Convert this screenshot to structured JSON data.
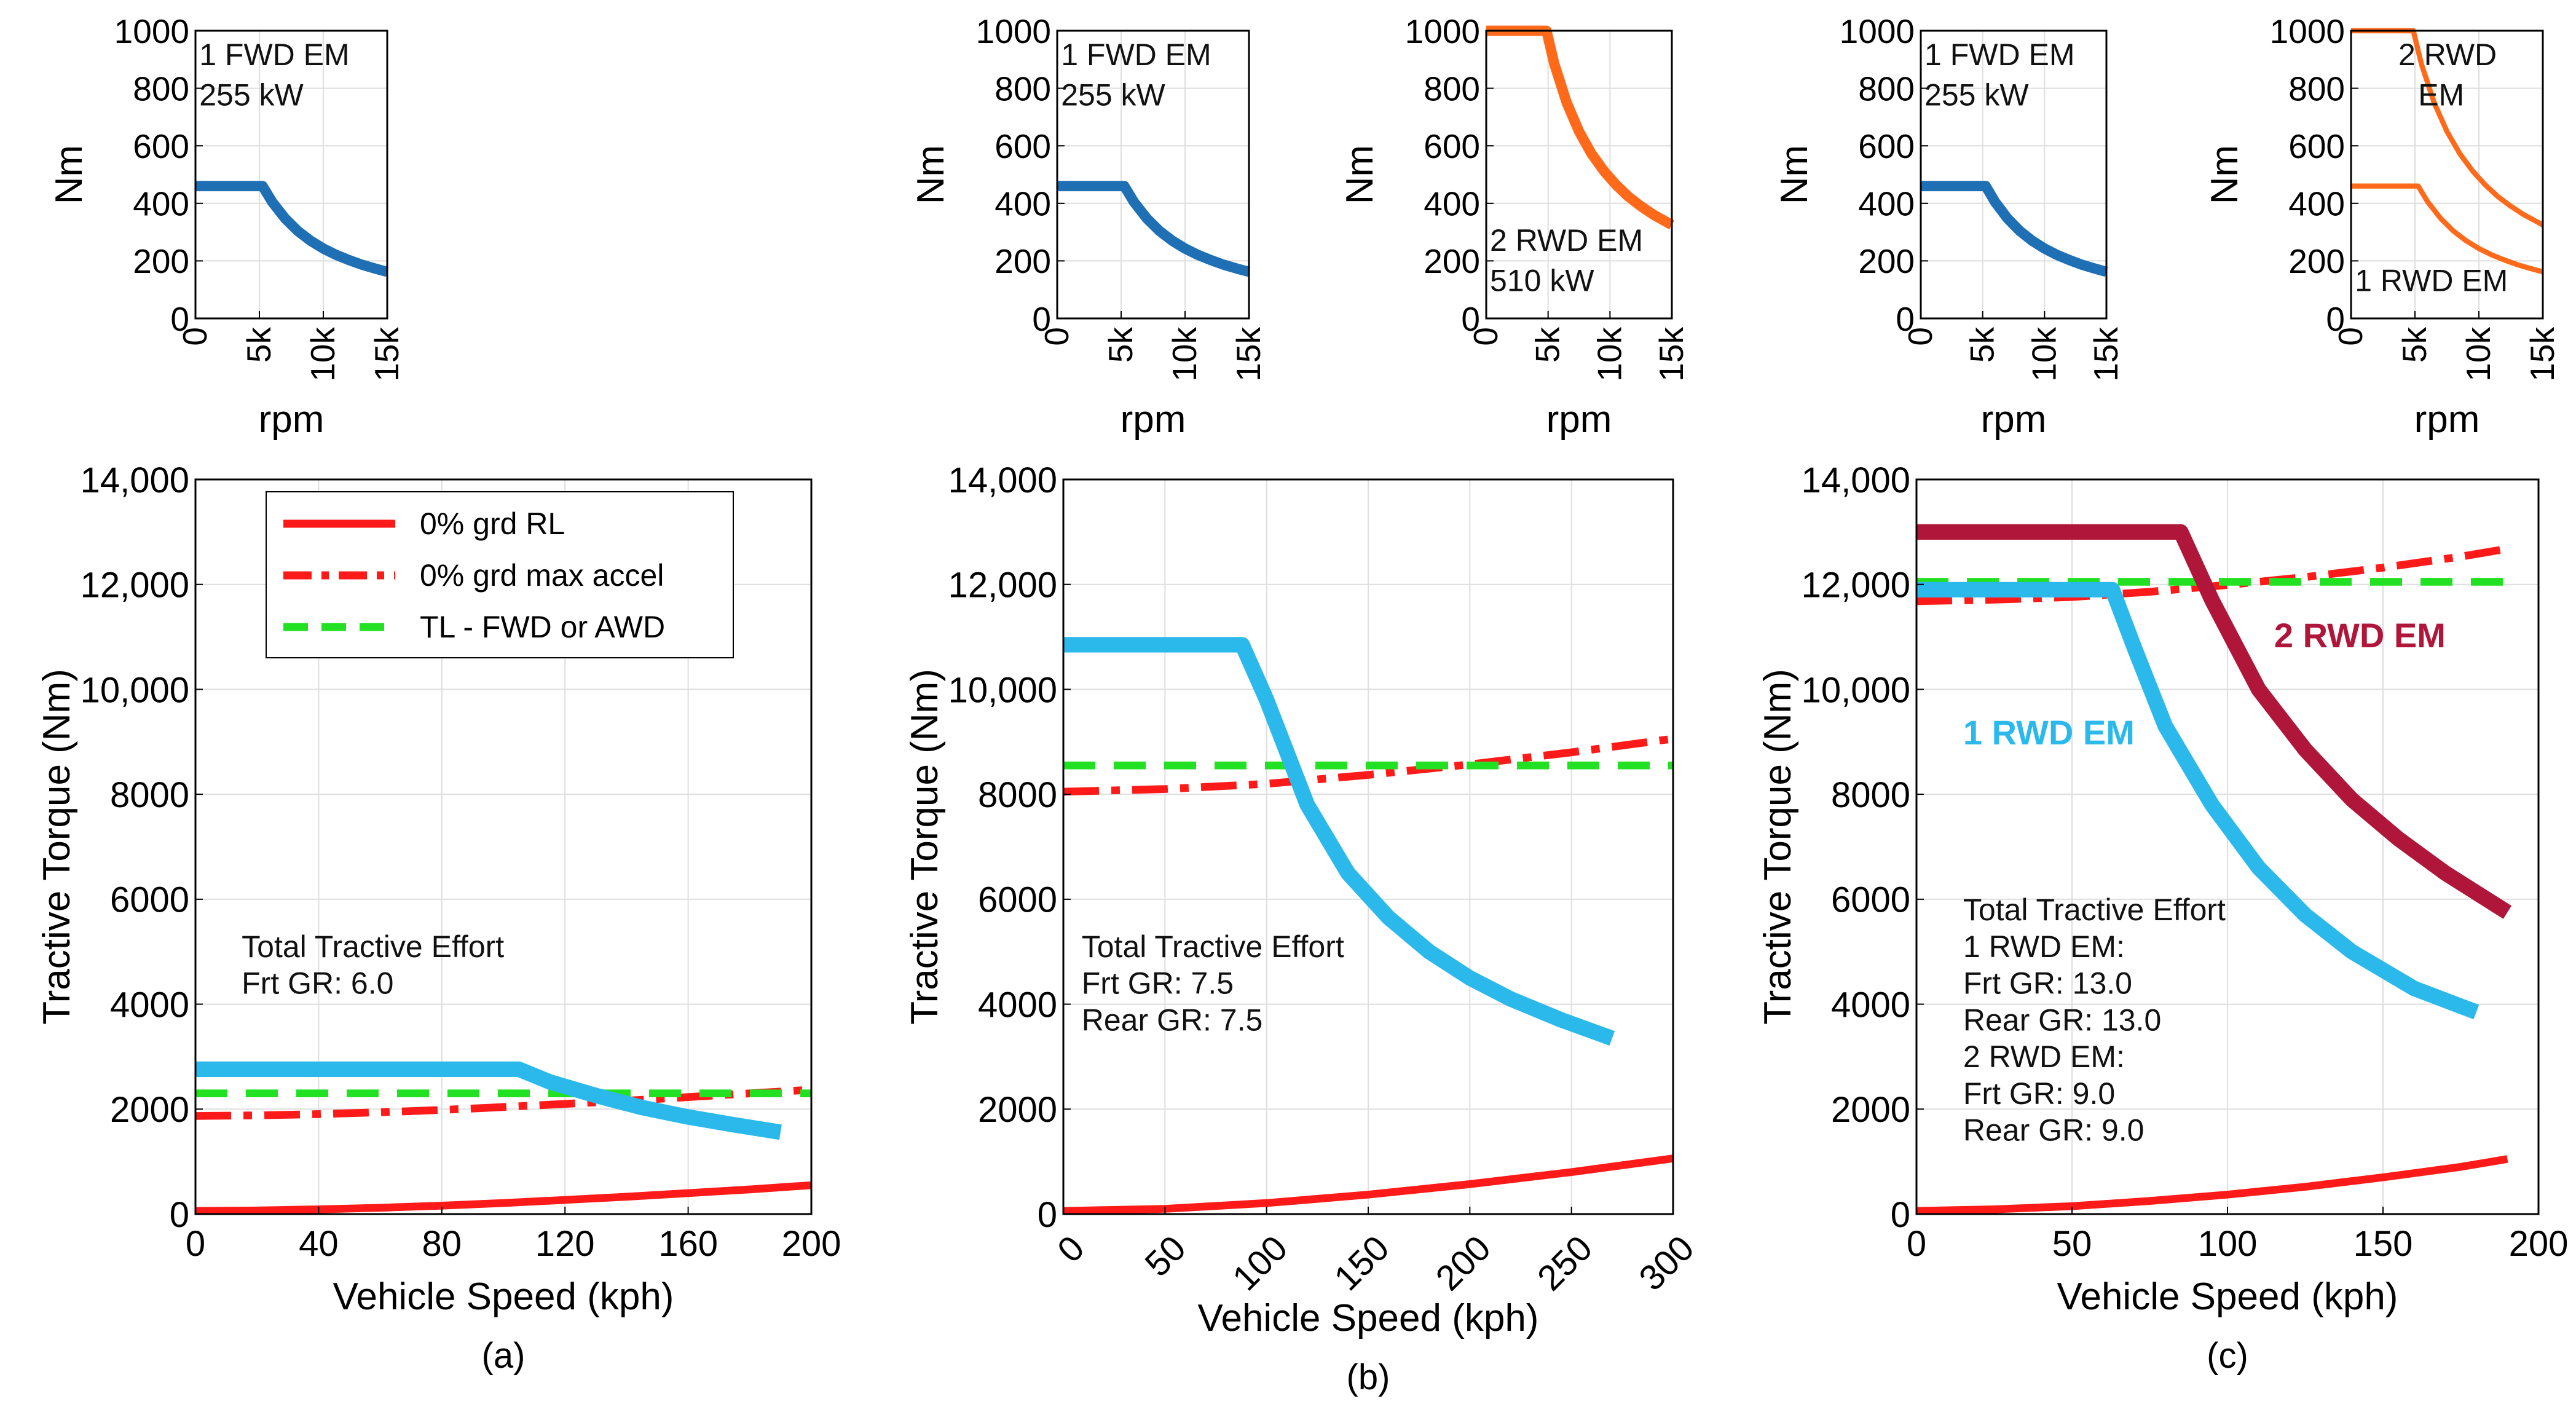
{
  "colors": {
    "blue": "#1f6fb5",
    "orange": "#ff6a1a",
    "cyan": "#2bb9ec",
    "red": "#ff1a1a",
    "green": "#22e022",
    "maroon": "#b0163a",
    "grid": "#dedede",
    "axis": "#000000"
  },
  "chart_data": [
    {
      "id": "a-front-motor",
      "type": "line",
      "xlabel": "rpm",
      "ylabel": "Nm",
      "xlim": [
        0,
        15000
      ],
      "ylim": [
        0,
        1000
      ],
      "xticks": [
        0,
        5000,
        10000,
        15000
      ],
      "xticklabels": [
        "0",
        "5k",
        "10k",
        "15k"
      ],
      "yticks": [
        0,
        200,
        400,
        600,
        800,
        1000
      ],
      "yticklabels": [
        "0",
        "200",
        "400",
        "600",
        "800",
        "1000"
      ],
      "annotations": [
        {
          "text": "1 FWD EM",
          "x": 300,
          "y": 880
        },
        {
          "text": "255 kW",
          "x": 300,
          "y": 740
        }
      ],
      "series": [
        {
          "name": "1 FWD EM",
          "color": "blue",
          "width": 4,
          "dash": "none",
          "x": [
            0,
            5250,
            6000,
            7000,
            8000,
            9000,
            10000,
            11000,
            12000,
            13000,
            14000,
            15000
          ],
          "y": [
            460,
            460,
            405,
            348,
            304,
            270,
            243,
            221,
            203,
            187,
            174,
            162
          ]
        }
      ]
    },
    {
      "id": "b-front-motor",
      "type": "line",
      "xlabel": "rpm",
      "ylabel": "Nm",
      "xlim": [
        0,
        15000
      ],
      "ylim": [
        0,
        1000
      ],
      "xticks": [
        0,
        5000,
        10000,
        15000
      ],
      "xticklabels": [
        "0",
        "5k",
        "10k",
        "15k"
      ],
      "yticks": [
        0,
        200,
        400,
        600,
        800,
        1000
      ],
      "yticklabels": [
        "0",
        "200",
        "400",
        "600",
        "800",
        "1000"
      ],
      "annotations": [
        {
          "text": "1 FWD EM",
          "x": 300,
          "y": 880
        },
        {
          "text": "255 kW",
          "x": 300,
          "y": 740
        }
      ],
      "series": [
        {
          "name": "1 FWD EM",
          "color": "blue",
          "width": 4,
          "dash": "none",
          "x": [
            0,
            5250,
            6000,
            7000,
            8000,
            9000,
            10000,
            11000,
            12000,
            13000,
            14000,
            15000
          ],
          "y": [
            460,
            460,
            405,
            348,
            304,
            270,
            243,
            221,
            203,
            187,
            174,
            162
          ]
        }
      ]
    },
    {
      "id": "b-rear-motor",
      "type": "line",
      "xlabel": "rpm",
      "ylabel": "Nm",
      "xlim": [
        0,
        15000
      ],
      "ylim": [
        0,
        1000
      ],
      "xticks": [
        0,
        5000,
        10000,
        15000
      ],
      "xticklabels": [
        "0",
        "5k",
        "10k",
        "15k"
      ],
      "yticks": [
        0,
        200,
        400,
        600,
        800,
        1000
      ],
      "yticklabels": [
        "0",
        "200",
        "400",
        "600",
        "800",
        "1000"
      ],
      "annotations": [
        {
          "text": "2 RWD EM",
          "x": 300,
          "y": 235
        },
        {
          "text": "510 kW",
          "x": 300,
          "y": 95
        }
      ],
      "series": [
        {
          "name": "2 RWD EM",
          "color": "orange",
          "width": 4,
          "dash": "none",
          "x": [
            0,
            4870,
            5500,
            6500,
            7500,
            8500,
            9500,
            10500,
            11500,
            12500,
            13500,
            15000
          ],
          "y": [
            1000,
            1000,
            885,
            750,
            650,
            573,
            513,
            464,
            423,
            390,
            361,
            325
          ]
        }
      ]
    },
    {
      "id": "c-front-motor",
      "type": "line",
      "xlabel": "rpm",
      "ylabel": "Nm",
      "xlim": [
        0,
        15000
      ],
      "ylim": [
        0,
        1000
      ],
      "xticks": [
        0,
        5000,
        10000,
        15000
      ],
      "xticklabels": [
        "0",
        "5k",
        "10k",
        "15k"
      ],
      "yticks": [
        0,
        200,
        400,
        600,
        800,
        1000
      ],
      "yticklabels": [
        "0",
        "200",
        "400",
        "600",
        "800",
        "1000"
      ],
      "annotations": [
        {
          "text": "1 FWD EM",
          "x": 300,
          "y": 880
        },
        {
          "text": "255 kW",
          "x": 300,
          "y": 740
        }
      ],
      "series": [
        {
          "name": "1 FWD EM",
          "color": "blue",
          "width": 4,
          "dash": "none",
          "x": [
            0,
            5250,
            6000,
            7000,
            8000,
            9000,
            10000,
            11000,
            12000,
            13000,
            14000,
            15000
          ],
          "y": [
            460,
            460,
            405,
            348,
            304,
            270,
            243,
            221,
            203,
            187,
            174,
            162
          ]
        }
      ]
    },
    {
      "id": "c-rear-motors",
      "type": "line",
      "xlabel": "rpm",
      "ylabel": "Nm",
      "xlim": [
        0,
        15000
      ],
      "ylim": [
        0,
        1000
      ],
      "xticks": [
        0,
        5000,
        10000,
        15000
      ],
      "xticklabels": [
        "0",
        "5k",
        "10k",
        "15k"
      ],
      "yticks": [
        0,
        200,
        400,
        600,
        800,
        1000
      ],
      "yticklabels": [
        "0",
        "200",
        "400",
        "600",
        "800",
        "1000"
      ],
      "annotations": [
        {
          "text": "2 RWD",
          "x": 3700,
          "y": 880
        },
        {
          "text": "EM",
          "x": 5250,
          "y": 740
        },
        {
          "text": "1 RWD EM",
          "x": 300,
          "y": 95
        }
      ],
      "series": [
        {
          "name": "2 RWD EM",
          "color": "orange",
          "width": 2,
          "dash": "none",
          "x": [
            0,
            4870,
            5500,
            6500,
            7500,
            8500,
            9500,
            10500,
            11500,
            12500,
            13500,
            15000
          ],
          "y": [
            1000,
            1000,
            885,
            750,
            650,
            573,
            513,
            464,
            423,
            390,
            361,
            325
          ]
        },
        {
          "name": "1 RWD EM",
          "color": "orange",
          "width": 2,
          "dash": "none",
          "x": [
            0,
            5250,
            6000,
            7000,
            8000,
            9000,
            10000,
            11000,
            12000,
            13000,
            14000,
            15000
          ],
          "y": [
            460,
            460,
            405,
            348,
            304,
            270,
            243,
            221,
            203,
            187,
            174,
            162
          ]
        }
      ]
    },
    {
      "id": "a-tractive",
      "type": "line",
      "caption": "(a)",
      "xlabel": "Vehicle Speed (kph)",
      "ylabel": "Tractive Torque (Nm)",
      "xlim": [
        0,
        200
      ],
      "ylim": [
        0,
        14000
      ],
      "xticks": [
        0,
        40,
        80,
        120,
        160,
        200
      ],
      "xticklabels": [
        "0",
        "40",
        "80",
        "120",
        "160",
        "200"
      ],
      "yticks": [
        0,
        2000,
        4000,
        6000,
        8000,
        10000,
        12000,
        14000
      ],
      "yticklabels": [
        "0",
        "2000",
        "4000",
        "6000",
        "8000",
        "10,000",
        "12,000",
        "14,000"
      ],
      "legend": {
        "placement": "top-left",
        "entries": [
          {
            "label": "0% grd RL",
            "color": "red",
            "dash": "none"
          },
          {
            "label": "0% grd max accel",
            "color": "red",
            "dash": "dashdot"
          },
          {
            "label": "TL - FWD or AWD",
            "color": "green",
            "dash": "dash"
          }
        ]
      },
      "annotations": [
        {
          "text": "Total Tractive Effort",
          "x": 15,
          "y": 4900
        },
        {
          "text": "Frt GR: 6.0",
          "x": 15,
          "y": 4200
        }
      ],
      "series": [
        {
          "name": "0% grd RL",
          "color": "red",
          "width": 3,
          "dash": "none",
          "x": [
            0,
            20,
            40,
            60,
            80,
            100,
            120,
            140,
            160,
            180,
            200
          ],
          "y": [
            60,
            68,
            90,
            120,
            160,
            210,
            270,
            330,
            400,
            470,
            550
          ]
        },
        {
          "name": "0% grd max accel",
          "color": "red",
          "width": 3,
          "dash": "dashdot",
          "x": [
            0,
            20,
            40,
            60,
            80,
            100,
            120,
            140,
            160,
            180,
            200
          ],
          "y": [
            1870,
            1880,
            1905,
            1940,
            1985,
            2040,
            2100,
            2160,
            2230,
            2300,
            2370
          ]
        },
        {
          "name": "TL - FWD or AWD",
          "color": "green",
          "width": 3,
          "dash": "dash",
          "x": [
            0,
            200
          ],
          "y": [
            2300,
            2300
          ]
        },
        {
          "name": "Total Tractive Effort",
          "color": "cyan",
          "width": 6,
          "dash": "none",
          "x": [
            0,
            105,
            115,
            130,
            145,
            160,
            175,
            190
          ],
          "y": [
            2760,
            2760,
            2520,
            2260,
            2030,
            1850,
            1700,
            1560
          ]
        }
      ]
    },
    {
      "id": "b-tractive",
      "type": "line",
      "caption": "(b)",
      "xlabel": "Vehicle Speed (kph)",
      "ylabel": "Tractive Torque (Nm)",
      "xlim": [
        0,
        300
      ],
      "ylim": [
        0,
        14000
      ],
      "xticks": [
        0,
        50,
        100,
        150,
        200,
        250,
        300
      ],
      "xticklabels": [
        "0",
        "50",
        "100",
        "150",
        "200",
        "250",
        "300"
      ],
      "rotate_xticks": true,
      "yticks": [
        0,
        2000,
        4000,
        6000,
        8000,
        10000,
        12000,
        14000
      ],
      "yticklabels": [
        "0",
        "2000",
        "4000",
        "6000",
        "8000",
        "10,000",
        "12,000",
        "14,000"
      ],
      "annotations": [
        {
          "text": "Total Tractive Effort",
          "x": 9,
          "y": 4900
        },
        {
          "text": "Frt GR: 7.5",
          "x": 9,
          "y": 4200
        },
        {
          "text": "Rear GR: 7.5",
          "x": 9,
          "y": 3500
        }
      ],
      "series": [
        {
          "name": "0% grd RL",
          "color": "red",
          "width": 3,
          "dash": "none",
          "x": [
            0,
            50,
            100,
            150,
            200,
            250,
            300
          ],
          "y": [
            60,
            100,
            210,
            370,
            570,
            800,
            1060
          ]
        },
        {
          "name": "0% grd max accel",
          "color": "red",
          "width": 3,
          "dash": "dashdot",
          "x": [
            0,
            50,
            100,
            150,
            200,
            250,
            300
          ],
          "y": [
            8050,
            8100,
            8200,
            8370,
            8570,
            8800,
            9060
          ]
        },
        {
          "name": "TL - FWD or AWD",
          "color": "green",
          "width": 3,
          "dash": "dash",
          "x": [
            0,
            300
          ],
          "y": [
            8550,
            8550
          ]
        },
        {
          "name": "Total Tractive Effort",
          "color": "cyan",
          "width": 6,
          "dash": "none",
          "x": [
            0,
            88,
            100,
            120,
            140,
            160,
            180,
            200,
            220,
            245,
            270
          ],
          "y": [
            10850,
            10850,
            9800,
            7800,
            6500,
            5650,
            5000,
            4500,
            4100,
            3700,
            3350
          ]
        }
      ]
    },
    {
      "id": "c-tractive",
      "type": "line",
      "caption": "(c)",
      "xlabel": "Vehicle Speed (kph)",
      "ylabel": "Tractive Torque (Nm)",
      "xlim": [
        0,
        200
      ],
      "ylim": [
        0,
        14000
      ],
      "xticks": [
        0,
        50,
        100,
        150,
        200
      ],
      "xticklabels": [
        "0",
        "50",
        "100",
        "150",
        "200"
      ],
      "yticks": [
        0,
        2000,
        4000,
        6000,
        8000,
        10000,
        12000,
        14000
      ],
      "yticklabels": [
        "0",
        "2000",
        "4000",
        "6000",
        "8000",
        "10,000",
        "12,000",
        "14,000"
      ],
      "labels": [
        {
          "text": "2 RWD EM",
          "color": "maroon",
          "x": 115,
          "y": 10800
        },
        {
          "text": "1 RWD EM",
          "color": "cyan",
          "x": 15,
          "y": 8950
        }
      ],
      "annotations": [
        {
          "text": "Total Tractive Effort",
          "x": 15,
          "y": 5600
        },
        {
          "text": "1 RWD EM:",
          "x": 15,
          "y": 4900
        },
        {
          "text": "Frt GR: 13.0",
          "x": 15,
          "y": 4200
        },
        {
          "text": "Rear GR: 13.0",
          "x": 15,
          "y": 3500
        },
        {
          "text": "2 RWD EM:",
          "x": 15,
          "y": 2800
        },
        {
          "text": "Frt GR: 9.0",
          "x": 15,
          "y": 2100
        },
        {
          "text": "Rear GR: 9.0",
          "x": 15,
          "y": 1400
        }
      ],
      "series": [
        {
          "name": "0% grd RL",
          "color": "red",
          "width": 3,
          "dash": "none",
          "x": [
            0,
            25,
            50,
            75,
            100,
            125,
            150,
            175,
            190
          ],
          "y": [
            60,
            90,
            150,
            250,
            370,
            520,
            700,
            900,
            1050
          ]
        },
        {
          "name": "0% grd max accel",
          "color": "red",
          "width": 3,
          "dash": "dashdot",
          "x": [
            0,
            25,
            50,
            75,
            100,
            125,
            150,
            175,
            190
          ],
          "y": [
            11680,
            11710,
            11760,
            11860,
            11990,
            12140,
            12320,
            12530,
            12680
          ]
        },
        {
          "name": "TL - FWD or AWD",
          "color": "green",
          "width": 3,
          "dash": "dash",
          "x": [
            0,
            190
          ],
          "y": [
            12050,
            12050
          ]
        },
        {
          "name": "2 RWD EM",
          "color": "maroon",
          "width": 6,
          "dash": "none",
          "x": [
            0,
            85,
            95,
            110,
            125,
            140,
            155,
            170,
            190
          ],
          "y": [
            13000,
            13000,
            11700,
            10000,
            8850,
            7900,
            7150,
            6500,
            5750
          ]
        },
        {
          "name": "1 RWD EM",
          "color": "cyan",
          "width": 6,
          "dash": "none",
          "x": [
            0,
            63,
            70,
            80,
            95,
            110,
            125,
            140,
            160,
            180
          ],
          "y": [
            11900,
            11900,
            10800,
            9300,
            7800,
            6600,
            5700,
            5000,
            4300,
            3850
          ]
        }
      ]
    }
  ]
}
